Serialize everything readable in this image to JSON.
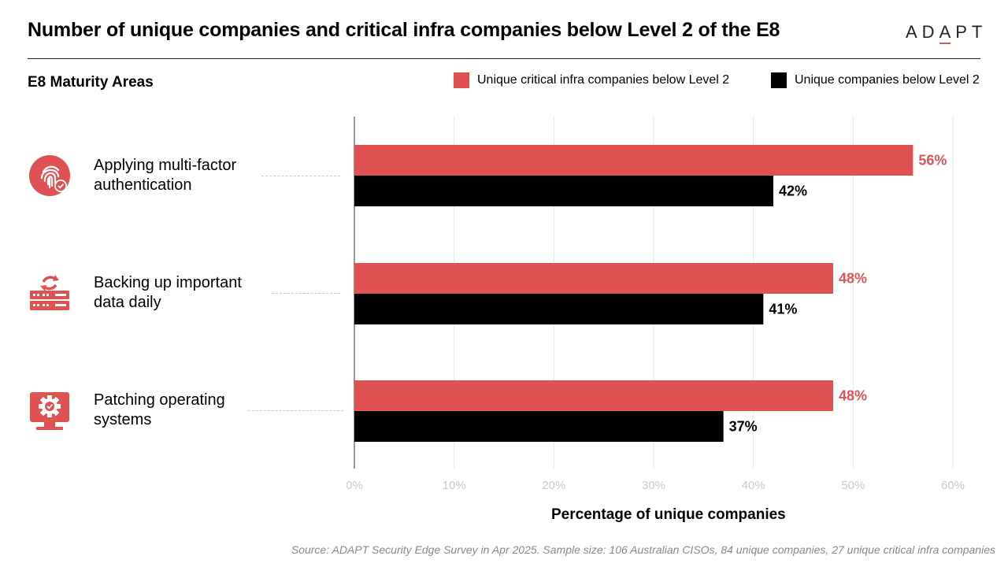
{
  "header": {
    "title": "Number of unique companies and critical infra companies below Level 2 of the E8",
    "logo_text": "ADAPT"
  },
  "areas_heading": "E8 Maturity Areas",
  "legend": [
    {
      "label": "Unique critical infra companies below Level 2",
      "color": "#e05252"
    },
    {
      "label": "Unique companies below Level 2",
      "color": "#000000"
    }
  ],
  "categories": [
    {
      "label": "Applying multi-factor authentication",
      "icon": "fingerprint-icon"
    },
    {
      "label": "Backing up important data daily",
      "icon": "server-backup-icon"
    },
    {
      "label": "Patching operating systems",
      "icon": "gear-monitor-icon"
    }
  ],
  "chart_data": {
    "type": "bar",
    "orientation": "horizontal",
    "categories": [
      "Applying multi-factor authentication",
      "Backing up important data daily",
      "Patching operating systems"
    ],
    "series": [
      {
        "name": "Unique critical infra companies below Level 2",
        "values": [
          56,
          48,
          48
        ],
        "labels": [
          "56%",
          "48%",
          "48%"
        ],
        "color": "#e05252"
      },
      {
        "name": "Unique companies below Level 2",
        "values": [
          42,
          41,
          37
        ],
        "labels": [
          "42%",
          "41%",
          "37%"
        ],
        "color": "#000000"
      }
    ],
    "xlabel": "Percentage of unique companies",
    "xlim": [
      0,
      60
    ],
    "xticks": [
      "0%",
      "10%",
      "20%",
      "30%",
      "40%",
      "50%",
      "60%"
    ],
    "grid": true
  },
  "source": "Source: ADAPT Security Edge Survey in Apr 2025. Sample size: 106 Australian CISOs, 84 unique companies, 27 unique critical infra companies"
}
